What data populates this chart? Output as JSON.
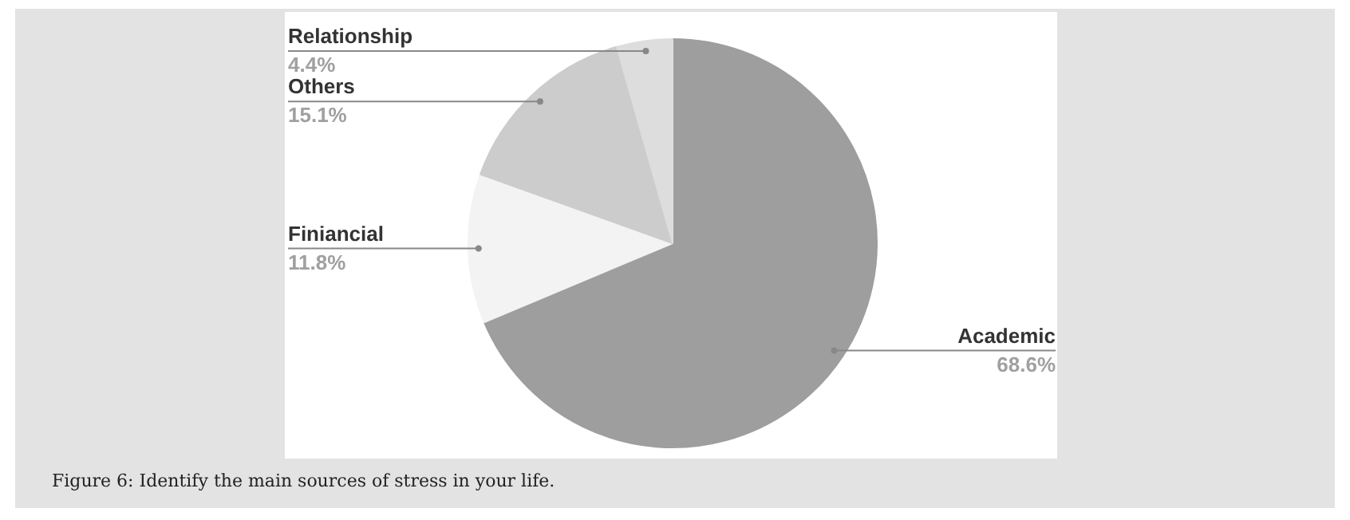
{
  "chart_data": {
    "type": "pie",
    "categories": [
      "Academic",
      "Finiancial",
      "Others",
      "Relationship"
    ],
    "values": [
      68.6,
      11.8,
      15.1,
      4.4
    ],
    "colors": [
      "#9e9e9e",
      "#f3f3f3",
      "#cccccc",
      "#dddddd"
    ],
    "value_labels": [
      "68.6%",
      "11.8%",
      "15.1%",
      "4.4%"
    ],
    "annotations": [
      "Figure 6: Identify the main sources of stress in your life."
    ]
  }
}
